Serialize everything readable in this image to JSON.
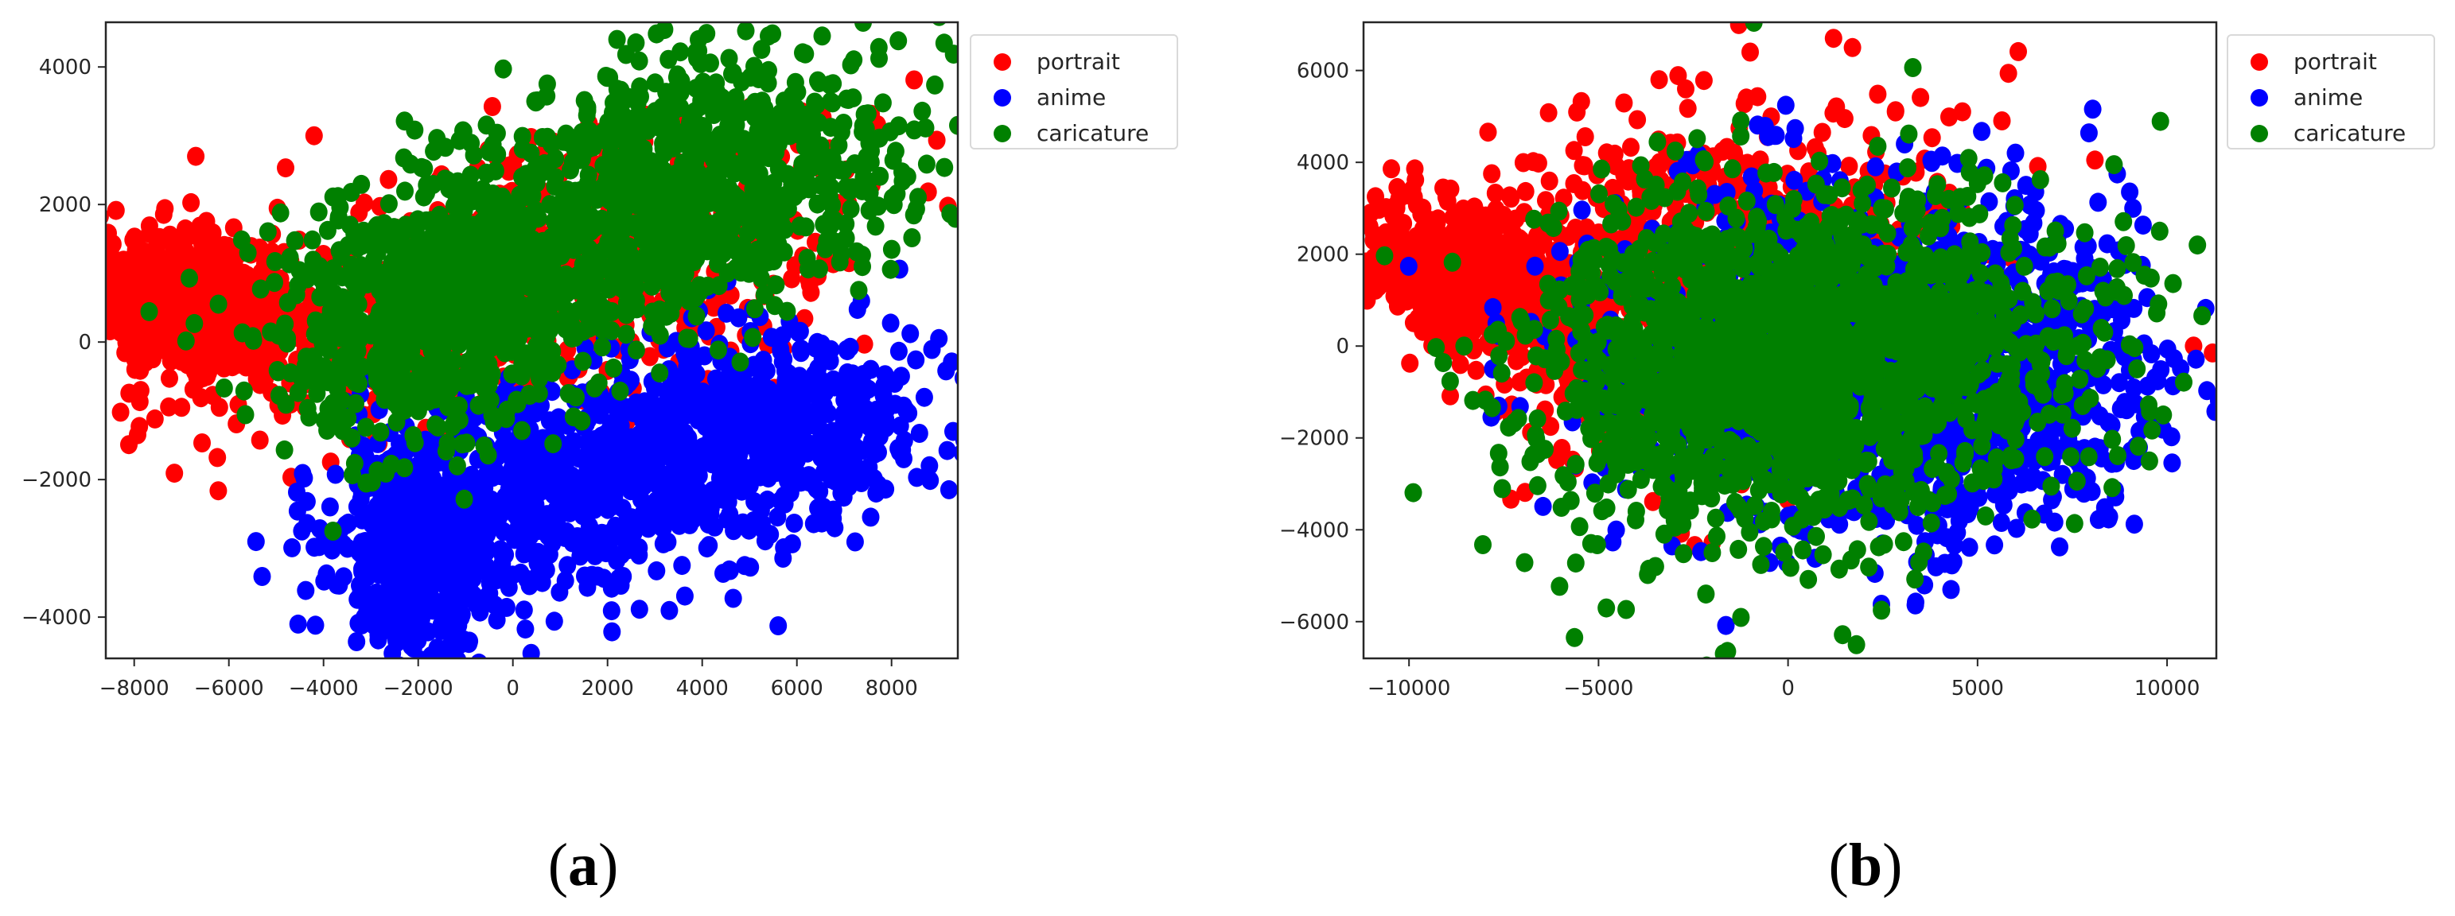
{
  "figure": {
    "captions": [
      {
        "open": "(",
        "letter": "a",
        "close": ")"
      },
      {
        "open": "(",
        "letter": "b",
        "close": ")"
      }
    ]
  },
  "legend": [
    {
      "label": "portrait",
      "color": "#ff0000"
    },
    {
      "label": "anime",
      "color": "#0000ff"
    },
    {
      "label": "caricature",
      "color": "#008000"
    }
  ],
  "chart_data": [
    {
      "id": "a",
      "type": "scatter",
      "title": "",
      "xlabel": "",
      "ylabel": "",
      "xlim": [
        -8600,
        9400
      ],
      "ylim": [
        -4600,
        4650
      ],
      "xticks": [
        -8000,
        -6000,
        -4000,
        -2000,
        0,
        2000,
        4000,
        6000,
        8000
      ],
      "xtick_labels": [
        "−8000",
        "−6000",
        "−4000",
        "−2000",
        "0",
        "2000",
        "4000",
        "6000",
        "8000"
      ],
      "yticks": [
        -4000,
        -2000,
        0,
        2000,
        4000
      ],
      "ytick_labels": [
        "−4000",
        "−2000",
        "0",
        "2000",
        "4000"
      ],
      "grid": false,
      "legend_position": "outside upper right",
      "series": [
        {
          "name": "portrait",
          "color": "#ff0000",
          "clusters": [
            {
              "cx": -6800,
              "cy": 600,
              "sx": 1000,
              "sy": 450,
              "n": 900,
              "rot": 0
            },
            {
              "cx": -1000,
              "cy": 800,
              "sx": 3000,
              "sy": 800,
              "n": 500,
              "rot": 0.25
            },
            {
              "cx": 3500,
              "cy": 1000,
              "sx": 2200,
              "sy": 900,
              "n": 250,
              "rot": 0.2
            }
          ],
          "points": [
            [
              -6700,
              2700
            ],
            [
              -6200,
              -950
            ],
            [
              -7000,
              -950
            ],
            [
              -4200,
              3000
            ],
            [
              2800,
              3300
            ],
            [
              6100,
              3350
            ]
          ]
        },
        {
          "name": "anime",
          "color": "#0000ff",
          "clusters": [
            {
              "cx": -2000,
              "cy": -3000,
              "sx": 800,
              "sy": 900,
              "n": 500,
              "rot": 0.6
            },
            {
              "cx": 2500,
              "cy": -1800,
              "sx": 3000,
              "sy": 800,
              "n": 900,
              "rot": 0.15
            },
            {
              "cx": 6500,
              "cy": -1200,
              "sx": 1200,
              "sy": 700,
              "n": 200,
              "rot": 0
            }
          ],
          "points": [
            [
              9000,
              50
            ],
            [
              9300,
              -1300
            ],
            [
              8800,
              -1800
            ],
            [
              6800,
              -2700
            ],
            [
              -2100,
              -4450
            ],
            [
              -1600,
              -4450
            ]
          ]
        },
        {
          "name": "caricature",
          "color": "#008000",
          "clusters": [
            {
              "cx": -1500,
              "cy": 600,
              "sx": 1800,
              "sy": 900,
              "n": 900,
              "rot": 0.18
            },
            {
              "cx": 3500,
              "cy": 2000,
              "sx": 2400,
              "sy": 900,
              "n": 700,
              "rot": 0.15
            },
            {
              "cx": 4500,
              "cy": 3200,
              "sx": 1800,
              "sy": 600,
              "n": 150,
              "rot": 0
            }
          ],
          "points": [
            [
              -3800,
              -2750
            ],
            [
              2200,
              4400
            ],
            [
              2600,
              4350
            ],
            [
              5400,
              4450
            ],
            [
              7400,
              4650
            ],
            [
              9400,
              3150
            ],
            [
              9350,
              1800
            ],
            [
              -3100,
              -2050
            ]
          ]
        }
      ]
    },
    {
      "id": "b",
      "type": "scatter",
      "title": "",
      "xlabel": "",
      "ylabel": "",
      "xlim": [
        -11200,
        11300
      ],
      "ylim": [
        -6800,
        7050
      ],
      "xticks": [
        -10000,
        -5000,
        0,
        5000,
        10000
      ],
      "xtick_labels": [
        "−10000",
        "−5000",
        "0",
        "5000",
        "10000"
      ],
      "yticks": [
        -6000,
        -4000,
        -2000,
        0,
        2000,
        4000,
        6000
      ],
      "ytick_labels": [
        "−6000",
        "−4000",
        "−2000",
        "0",
        "2000",
        "4000",
        "6000"
      ],
      "grid": false,
      "legend_position": "outside upper right",
      "series": [
        {
          "name": "portrait",
          "color": "#ff0000",
          "clusters": [
            {
              "cx": -8500,
              "cy": 1500,
              "sx": 1400,
              "sy": 700,
              "n": 700,
              "rot": -0.35
            },
            {
              "cx": -4500,
              "cy": 1000,
              "sx": 1800,
              "sy": 1800,
              "n": 400,
              "rot": 0
            },
            {
              "cx": 0,
              "cy": 2500,
              "sx": 3000,
              "sy": 1500,
              "n": 250,
              "rot": 0
            }
          ],
          "points": [
            [
              -1300,
              7000
            ],
            [
              -1000,
              6400
            ],
            [
              1200,
              6700
            ],
            [
              1700,
              6500
            ],
            [
              -3400,
              5800
            ],
            [
              -2700,
              5600
            ],
            [
              -1100,
              5400
            ],
            [
              10700,
              0
            ],
            [
              11200,
              -150
            ],
            [
              4600,
              5100
            ]
          ]
        },
        {
          "name": "anime",
          "color": "#0000ff",
          "clusters": [
            {
              "cx": 1500,
              "cy": -500,
              "sx": 3500,
              "sy": 1900,
              "n": 1200,
              "rot": 0
            },
            {
              "cx": 6000,
              "cy": -300,
              "sx": 1800,
              "sy": 1600,
              "n": 400,
              "rot": 0
            }
          ],
          "points": [
            [
              9100,
              3000
            ],
            [
              3400,
              -4700
            ],
            [
              4300,
              -5300
            ],
            [
              3600,
              -5200
            ],
            [
              -7700,
              500
            ],
            [
              6000,
              4200
            ]
          ]
        },
        {
          "name": "caricature",
          "color": "#008000",
          "clusters": [
            {
              "cx": -1000,
              "cy": -500,
              "sx": 2800,
              "sy": 1800,
              "n": 1400,
              "rot": 0
            },
            {
              "cx": 4000,
              "cy": 200,
              "sx": 2500,
              "sy": 1600,
              "n": 500,
              "rot": 0
            }
          ],
          "points": [
            [
              -1700,
              -6700
            ],
            [
              -1600,
              -6650
            ],
            [
              10800,
              2200
            ],
            [
              9900,
              -1500
            ],
            [
              -900,
              7050
            ],
            [
              8600,
              3950
            ],
            [
              -3500,
              -4800
            ],
            [
              -5200,
              -4300
            ]
          ]
        }
      ]
    }
  ]
}
